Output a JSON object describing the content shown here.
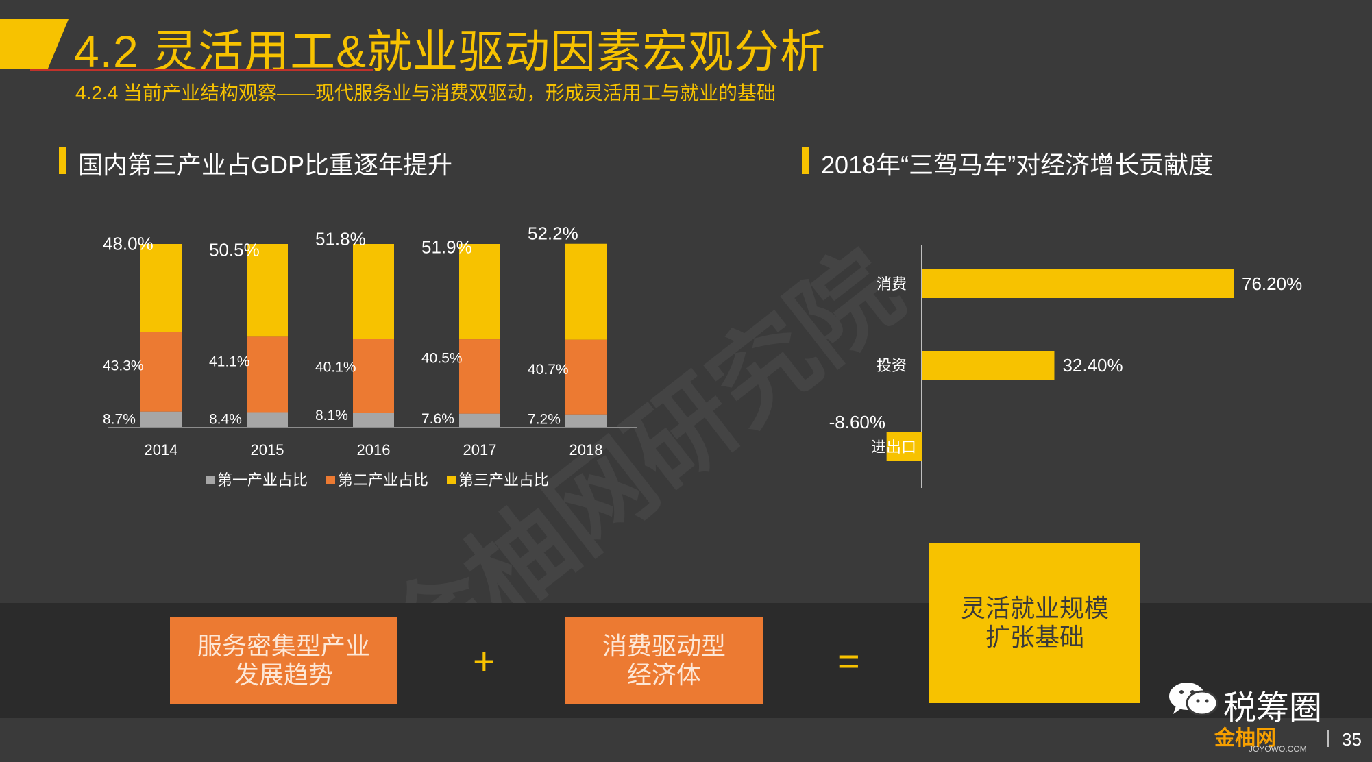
{
  "header": {
    "title": "4.2 灵活用工&就业驱动因素宏观分析",
    "subtitle": "4.2.4 当前产业结构观察——现代服务业与消费双驱动，形成灵活用工与就业的基础"
  },
  "sections": {
    "left_title": "国内第三产业占GDP比重逐年提升",
    "right_title": "2018年“三驾马车”对经济增长贡献度"
  },
  "watermark": "金柚网研究院",
  "chart_data": [
    {
      "type": "bar",
      "stacked": true,
      "title": "国内第三产业占GDP比重逐年提升",
      "categories": [
        "2014",
        "2015",
        "2016",
        "2017",
        "2018"
      ],
      "series": [
        {
          "name": "第一产业占比",
          "values": [
            8.7,
            8.4,
            8.1,
            7.6,
            7.2
          ],
          "labels": [
            "8.7%",
            "8.4%",
            "8.1%",
            "7.6%",
            "7.2%"
          ],
          "color": "#a6a6a6"
        },
        {
          "name": "第二产业占比",
          "values": [
            43.3,
            41.1,
            40.1,
            40.5,
            40.7
          ],
          "labels": [
            "43.3%",
            "41.1%",
            "40.1%",
            "40.5%",
            "40.7%"
          ],
          "color": "#ec7a32"
        },
        {
          "name": "第三产业占比",
          "values": [
            48.0,
            50.5,
            51.8,
            51.9,
            52.2
          ],
          "labels": [
            "48.0%",
            "50.5%",
            "51.8%",
            "51.9%",
            "52.2%"
          ],
          "color": "#f7c200"
        }
      ],
      "legend": "bottom",
      "ylim": [
        0,
        100
      ],
      "grid": false
    },
    {
      "type": "bar",
      "orientation": "horizontal",
      "title": "2018年“三驾马车”对经济增长贡献度",
      "categories": [
        "消费",
        "投资",
        "进出口"
      ],
      "values": [
        76.2,
        32.4,
        -8.6
      ],
      "labels": [
        "76.20%",
        "32.40%",
        "-8.60%"
      ],
      "color": "#f7c200",
      "grid": false
    }
  ],
  "equation": {
    "box1": [
      "服务密集型产业",
      "发展趋势"
    ],
    "plus": "+",
    "box2": [
      "消费驱动型",
      "经济体"
    ],
    "equals": "=",
    "box3": [
      "灵活就业规模",
      "扩张基础"
    ]
  },
  "footer": {
    "wechat_name": "税筹圈",
    "brand_logo": "金柚网",
    "brand_sub": "JOYOWO.COM",
    "page_number": "35"
  },
  "colors": {
    "background": "#3a3a3a",
    "accent_yellow": "#f7c200",
    "accent_orange": "#ec7a32",
    "gray": "#a6a6a6"
  }
}
